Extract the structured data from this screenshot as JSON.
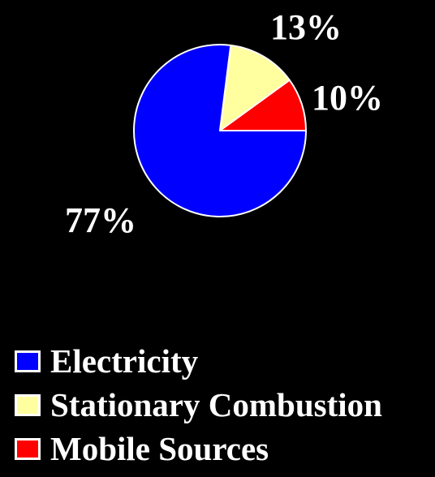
{
  "chart_data": {
    "type": "pie",
    "title": "",
    "slices": [
      {
        "name": "Electricity",
        "value": 77,
        "label": "77%",
        "color": "#0000FF"
      },
      {
        "name": "Stationary Combustion",
        "value": 13,
        "label": "13%",
        "color": "#FFFFA0"
      },
      {
        "name": "Mobile Sources",
        "value": 10,
        "label": "10%",
        "color": "#FF0000"
      }
    ],
    "legend": {
      "placement": "bottom-left",
      "entries": [
        "Electricity",
        "Stationary Combustion",
        "Mobile Sources"
      ]
    },
    "edge_color": "#FFFFFF",
    "background": "#000000"
  }
}
